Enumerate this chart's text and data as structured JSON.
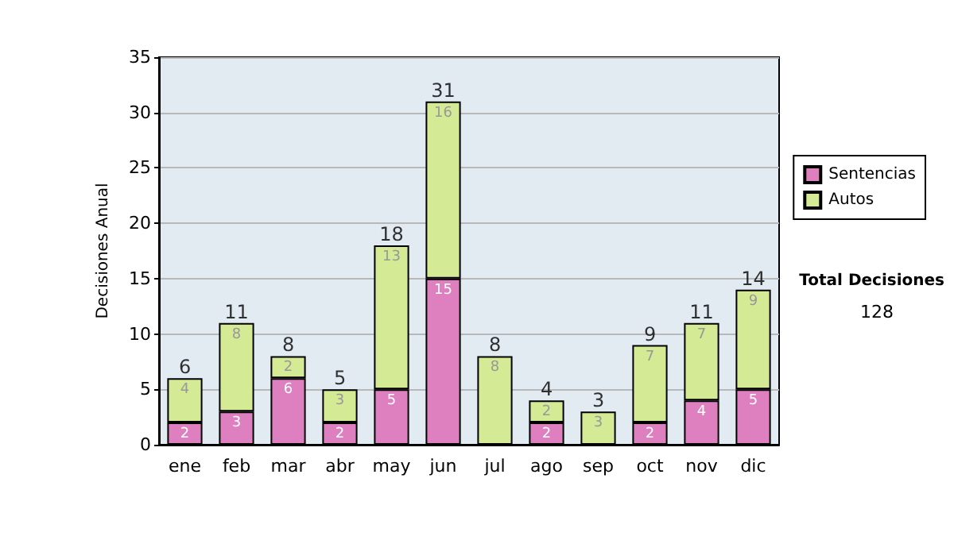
{
  "chart_data": {
    "type": "bar",
    "stacked": true,
    "ylabel": "Decisiones Anual",
    "categories": [
      "ene",
      "feb",
      "mar",
      "abr",
      "may",
      "jun",
      "jul",
      "ago",
      "sep",
      "oct",
      "nov",
      "dic"
    ],
    "series": [
      {
        "name": "Sentencias",
        "color": "#de7fc0",
        "values": [
          2,
          3,
          6,
          2,
          5,
          15,
          null,
          2,
          null,
          2,
          4,
          5
        ]
      },
      {
        "name": "Autos",
        "color": "#d4ea94",
        "values": [
          4,
          8,
          2,
          3,
          13,
          16,
          8,
          2,
          3,
          7,
          7,
          9
        ]
      }
    ],
    "totals": [
      "6",
      "11",
      "8",
      "5",
      "18",
      "31",
      "8",
      "4",
      "3",
      "9",
      "11",
      "14"
    ],
    "data_labels": true,
    "ylim": [
      0,
      35
    ],
    "yticks": [
      0,
      5,
      10,
      15,
      20,
      25,
      30,
      35
    ],
    "grid": "y",
    "legend": "right",
    "annotations": [
      "Total Decisiones",
      "128"
    ]
  }
}
